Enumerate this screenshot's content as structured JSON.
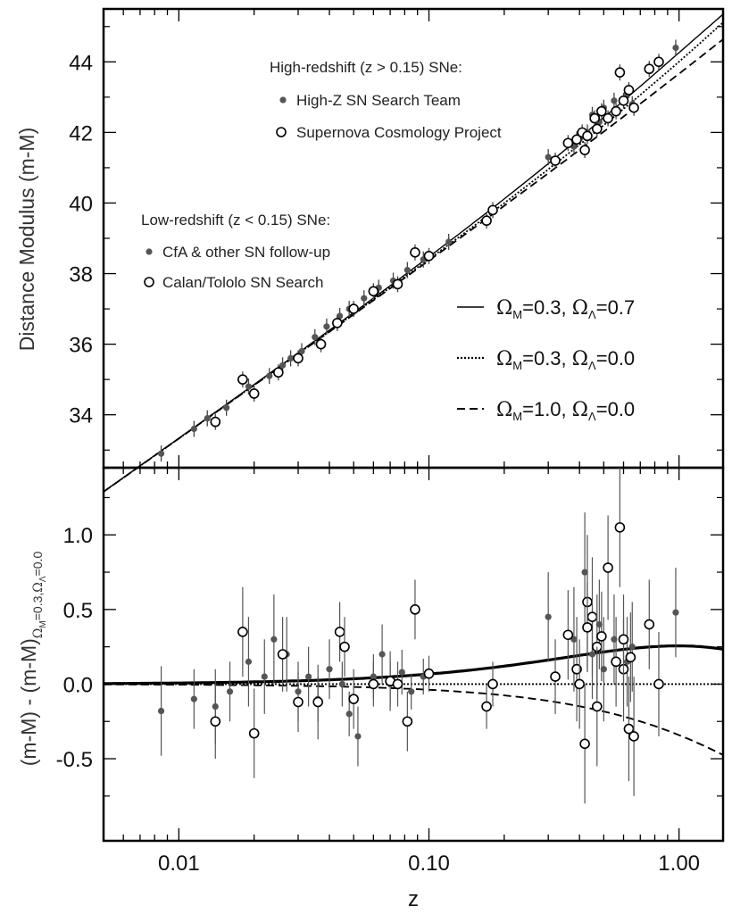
{
  "chart_data": [
    {
      "type": "scatter",
      "panel": "top",
      "ylabel": "Distance Modulus (m-M)",
      "xscale": "log",
      "xlim": [
        0.005,
        1.5
      ],
      "ylim": [
        32.5,
        45.5
      ],
      "yticks": [
        34,
        36,
        38,
        40,
        42,
        44
      ],
      "grid": false,
      "legends": {
        "high_header": "High-redshift (z > 0.15) SNe:",
        "high_items": [
          {
            "marker": "filled",
            "label": "High-Z SN Search Team"
          },
          {
            "marker": "open",
            "label": "Supernova Cosmology Project"
          }
        ],
        "low_header": "Low-redshift (z < 0.15) SNe:",
        "low_items": [
          {
            "marker": "filled",
            "label": "CfA & other SN follow-up"
          },
          {
            "marker": "open",
            "label": "Calan/Tololo SN Search"
          }
        ],
        "models": [
          {
            "style": "solid",
            "om": "0.3",
            "ol": "0.7"
          },
          {
            "style": "dotted",
            "om": "0.3",
            "ol": "0.0"
          },
          {
            "style": "dashed",
            "om": "1.0",
            "ol": "0.0"
          }
        ]
      },
      "series": [
        {
          "name": "CfA & other SN follow-up",
          "marker": "filled",
          "points": [
            [
              0.0085,
              32.9
            ],
            [
              0.0115,
              33.6
            ],
            [
              0.013,
              33.9
            ],
            [
              0.0155,
              34.2
            ],
            [
              0.019,
              34.8
            ],
            [
              0.023,
              35.1
            ],
            [
              0.026,
              35.4
            ],
            [
              0.028,
              35.6
            ],
            [
              0.031,
              35.8
            ],
            [
              0.035,
              36.2
            ],
            [
              0.039,
              36.5
            ],
            [
              0.044,
              36.8
            ],
            [
              0.048,
              37.0
            ],
            [
              0.055,
              37.3
            ],
            [
              0.063,
              37.6
            ],
            [
              0.072,
              37.8
            ],
            [
              0.082,
              38.1
            ],
            [
              0.095,
              38.4
            ],
            [
              0.12,
              38.9
            ]
          ]
        },
        {
          "name": "Calan/Tololo SN Search",
          "marker": "open",
          "points": [
            [
              0.014,
              33.8
            ],
            [
              0.018,
              35.0
            ],
            [
              0.02,
              34.6
            ],
            [
              0.025,
              35.2
            ],
            [
              0.03,
              35.6
            ],
            [
              0.037,
              36.0
            ],
            [
              0.043,
              36.6
            ],
            [
              0.05,
              37.0
            ],
            [
              0.06,
              37.5
            ],
            [
              0.075,
              37.7
            ],
            [
              0.088,
              38.6
            ],
            [
              0.1,
              38.5
            ],
            [
              0.17,
              39.5
            ],
            [
              0.18,
              39.8
            ]
          ]
        },
        {
          "name": "High-Z SN Search Team",
          "marker": "filled",
          "points": [
            [
              0.3,
              41.3
            ],
            [
              0.38,
              41.6
            ],
            [
              0.43,
              42.0
            ],
            [
              0.45,
              42.5
            ],
            [
              0.48,
              42.3
            ],
            [
              0.5,
              42.7
            ],
            [
              0.55,
              42.9
            ],
            [
              0.62,
              43.1
            ],
            [
              0.65,
              42.8
            ],
            [
              0.97,
              44.4
            ]
          ]
        },
        {
          "name": "Supernova Cosmology Project",
          "marker": "open",
          "points": [
            [
              0.32,
              41.2
            ],
            [
              0.36,
              41.7
            ],
            [
              0.39,
              41.8
            ],
            [
              0.41,
              42.0
            ],
            [
              0.42,
              41.5
            ],
            [
              0.43,
              41.9
            ],
            [
              0.46,
              42.4
            ],
            [
              0.47,
              42.1
            ],
            [
              0.49,
              42.6
            ],
            [
              0.52,
              42.4
            ],
            [
              0.56,
              42.6
            ],
            [
              0.58,
              43.7
            ],
            [
              0.6,
              42.9
            ],
            [
              0.63,
              43.2
            ],
            [
              0.66,
              42.7
            ],
            [
              0.76,
              43.8
            ],
            [
              0.83,
              44.0
            ]
          ]
        }
      ]
    },
    {
      "type": "scatter",
      "panel": "bottom",
      "xlabel": "z",
      "ylabel_main": "(m-M) - (m-M)",
      "ylabel_sub_om": "0.3",
      "ylabel_sub_ol": "0.0",
      "xscale": "log",
      "xlim": [
        0.005,
        1.5
      ],
      "ylim": [
        -1.05,
        1.45
      ],
      "xticks": [
        {
          "v": 0.01,
          "label": "0.01"
        },
        {
          "v": 0.1,
          "label": "0.10"
        },
        {
          "v": 1.0,
          "label": "1.00"
        }
      ],
      "yticks": [
        {
          "v": -0.5,
          "label": "-0.5"
        },
        {
          "v": 0.0,
          "label": "0.0"
        },
        {
          "v": 0.5,
          "label": "0.5"
        },
        {
          "v": 1.0,
          "label": "1.0"
        }
      ],
      "grid": false,
      "series": [
        {
          "name": "filled",
          "marker": "filled",
          "points": [
            [
              0.0085,
              -0.18,
              0.3
            ],
            [
              0.0115,
              -0.1,
              0.2
            ],
            [
              0.014,
              -0.15,
              0.25
            ],
            [
              0.016,
              -0.05,
              0.2
            ],
            [
              0.019,
              0.15,
              0.3
            ],
            [
              0.022,
              0.05,
              0.25
            ],
            [
              0.024,
              0.3,
              0.3
            ],
            [
              0.027,
              0.2,
              0.25
            ],
            [
              0.03,
              -0.05,
              0.2
            ],
            [
              0.033,
              0.05,
              0.2
            ],
            [
              0.036,
              -0.1,
              0.15
            ],
            [
              0.04,
              0.1,
              0.2
            ],
            [
              0.045,
              0.0,
              0.15
            ],
            [
              0.048,
              -0.2,
              0.15
            ],
            [
              0.052,
              -0.35,
              0.2
            ],
            [
              0.06,
              0.05,
              0.15
            ],
            [
              0.065,
              0.2,
              0.2
            ],
            [
              0.07,
              0.0,
              0.15
            ],
            [
              0.078,
              0.08,
              0.15
            ],
            [
              0.085,
              -0.05,
              0.12
            ],
            [
              0.095,
              0.05,
              0.12
            ],
            [
              0.3,
              0.45,
              0.3
            ],
            [
              0.38,
              0.3,
              0.35
            ],
            [
              0.42,
              0.75,
              0.4
            ],
            [
              0.45,
              0.2,
              0.3
            ],
            [
              0.48,
              0.4,
              0.3
            ],
            [
              0.5,
              0.1,
              0.35
            ],
            [
              0.55,
              0.3,
              0.3
            ],
            [
              0.62,
              0.15,
              0.3
            ],
            [
              0.65,
              0.25,
              0.3
            ],
            [
              0.97,
              0.48,
              0.3
            ]
          ]
        },
        {
          "name": "open",
          "marker": "open",
          "points": [
            [
              0.014,
              -0.25,
              0.25
            ],
            [
              0.018,
              0.35,
              0.3
            ],
            [
              0.02,
              -0.33,
              0.3
            ],
            [
              0.026,
              0.2,
              0.25
            ],
            [
              0.03,
              -0.12,
              0.2
            ],
            [
              0.036,
              -0.12,
              0.25
            ],
            [
              0.044,
              0.35,
              0.2
            ],
            [
              0.046,
              0.25,
              0.2
            ],
            [
              0.05,
              -0.1,
              0.2
            ],
            [
              0.06,
              0.0,
              0.15
            ],
            [
              0.07,
              0.02,
              0.2
            ],
            [
              0.075,
              0.0,
              0.15
            ],
            [
              0.082,
              -0.25,
              0.2
            ],
            [
              0.088,
              0.5,
              0.2
            ],
            [
              0.1,
              0.07,
              0.12
            ],
            [
              0.17,
              -0.15,
              0.15
            ],
            [
              0.18,
              0.0,
              0.15
            ],
            [
              0.32,
              0.05,
              0.25
            ],
            [
              0.36,
              0.33,
              0.3
            ],
            [
              0.39,
              0.1,
              0.35
            ],
            [
              0.4,
              0.0,
              0.3
            ],
            [
              0.42,
              -0.4,
              0.4
            ],
            [
              0.43,
              0.55,
              0.45
            ],
            [
              0.45,
              0.45,
              0.4
            ],
            [
              0.47,
              0.25,
              0.35
            ],
            [
              0.49,
              0.32,
              0.3
            ],
            [
              0.52,
              0.78,
              0.35
            ],
            [
              0.56,
              0.15,
              0.3
            ],
            [
              0.58,
              1.05,
              0.4
            ],
            [
              0.6,
              0.1,
              0.35
            ],
            [
              0.63,
              -0.3,
              0.35
            ],
            [
              0.66,
              -0.35,
              0.4
            ],
            [
              0.76,
              0.4,
              0.3
            ],
            [
              0.83,
              0.0,
              0.35
            ],
            [
              0.47,
              -0.15,
              0.4
            ],
            [
              0.43,
              0.38,
              0.3
            ],
            [
              0.6,
              0.3,
              0.3
            ],
            [
              0.64,
              0.18,
              0.3
            ]
          ]
        }
      ]
    }
  ]
}
